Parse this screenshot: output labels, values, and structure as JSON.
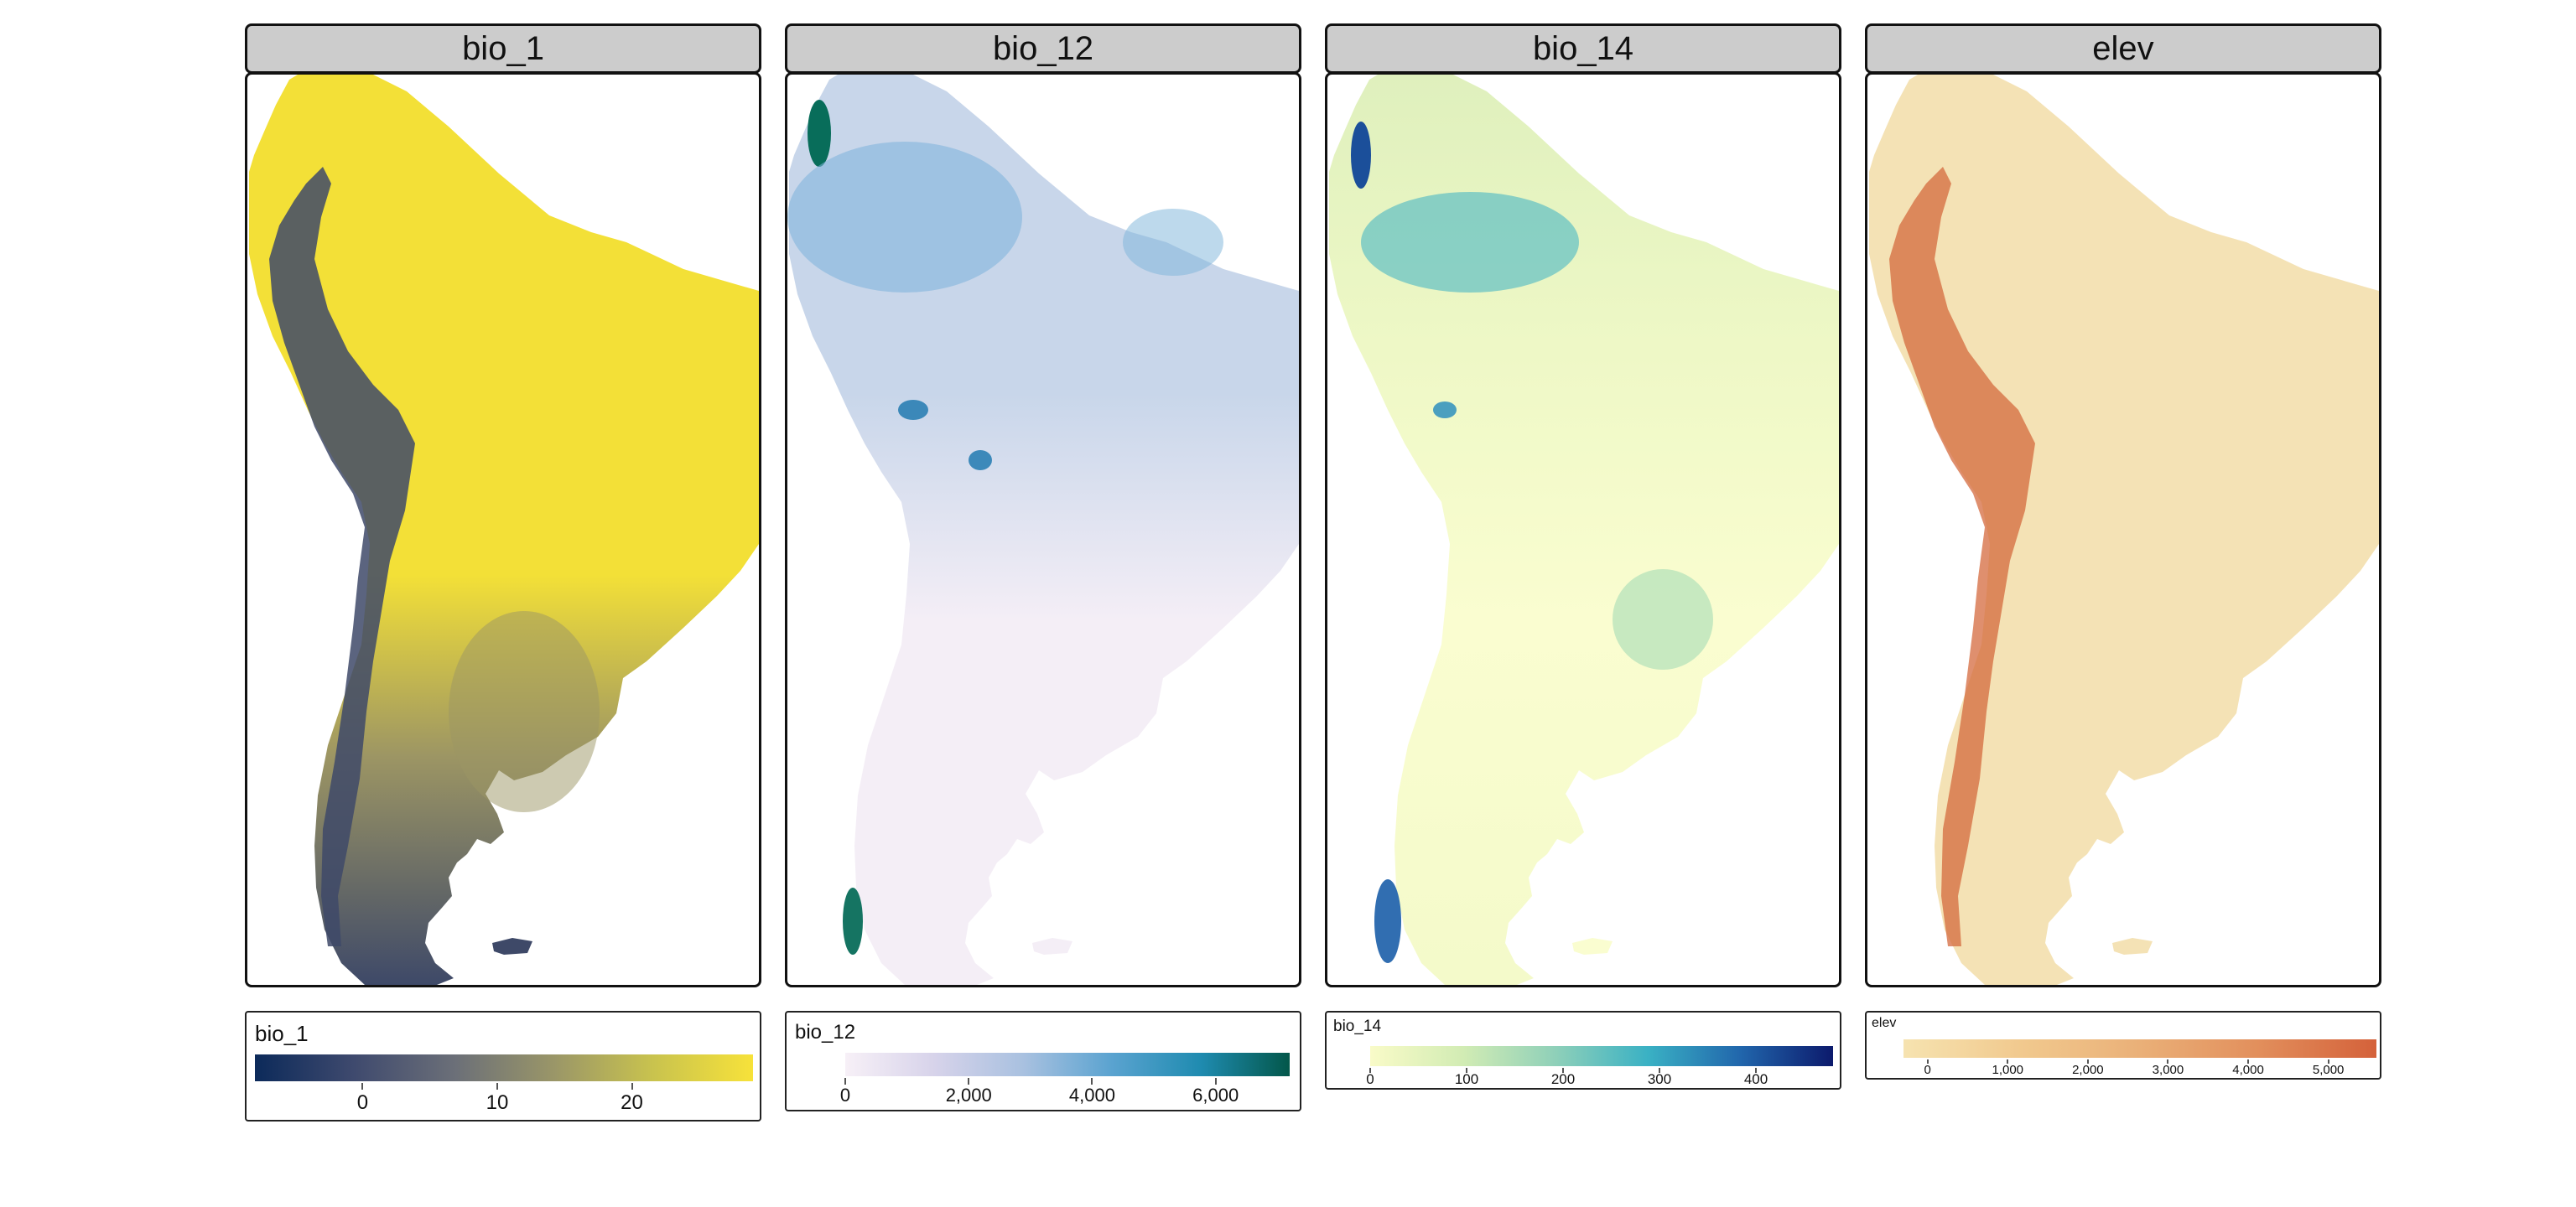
{
  "panels": [
    {
      "title": "bio_1",
      "legend": {
        "title": "bio_1",
        "colors": [
          "#0c2a5a",
          "#3f4a6e",
          "#6b6f78",
          "#9a9668",
          "#c9c34e",
          "#f7e23a"
        ],
        "ticks": [
          "0",
          "10",
          "20"
        ],
        "tick_values": [
          0,
          10,
          20
        ],
        "range": [
          -8,
          29
        ]
      },
      "map": {
        "high_color": "#f3e037",
        "low_color": "#3e4968",
        "mid_color": "#9c9564"
      }
    },
    {
      "title": "bio_12",
      "legend": {
        "title": "bio_12",
        "colors": [
          "#f7f0f7",
          "#d7d3ea",
          "#a9c1e0",
          "#5aa3d0",
          "#1f8bb0",
          "#03574a"
        ],
        "ticks": [
          "0",
          "2,000",
          "4,000",
          "6,000"
        ],
        "tick_values": [
          0,
          2000,
          4000,
          6000
        ],
        "range": [
          0,
          7200
        ]
      },
      "map": {
        "high_color": "#086d5a",
        "low_color": "#f4eef6",
        "mid_color": "#c8d6ea"
      }
    },
    {
      "title": "bio_14",
      "legend": {
        "title": "bio_14",
        "colors": [
          "#f9fbc8",
          "#d2ecb4",
          "#8fd0b9",
          "#3ab1c4",
          "#2166ac",
          "#0c1a6c"
        ],
        "ticks": [
          "0",
          "100",
          "200",
          "300",
          "400"
        ],
        "tick_values": [
          0,
          100,
          200,
          300,
          400
        ],
        "range": [
          0,
          480
        ]
      },
      "map": {
        "high_color": "#1b5ea8",
        "low_color": "#fafdd0",
        "mid_color": "#8fd0b9"
      }
    },
    {
      "title": "elev",
      "legend": {
        "title": "elev",
        "colors": [
          "#f6e3b0",
          "#f1c98e",
          "#eab078",
          "#e28f5c",
          "#d4613a"
        ],
        "ticks": [
          "0",
          "1,000",
          "2,000",
          "3,000",
          "4,000",
          "5,000"
        ],
        "tick_values": [
          0,
          1000,
          2000,
          3000,
          4000,
          5000
        ],
        "range": [
          -300,
          5600
        ]
      },
      "map": {
        "high_color": "#d46a3e",
        "low_color": "#f4e2b5",
        "mid_color": "#e8ad7a"
      }
    }
  ]
}
